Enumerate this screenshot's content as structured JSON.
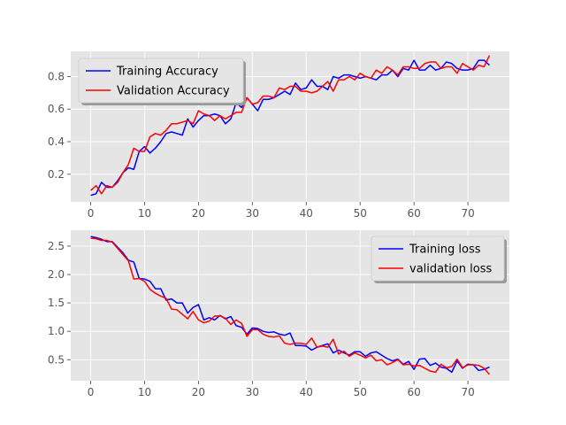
{
  "chart_data": [
    {
      "type": "line",
      "xlim": [
        -3.7,
        77.7
      ],
      "ylim": [
        0.03,
        0.955
      ],
      "xticks": [
        0,
        10,
        20,
        30,
        40,
        50,
        60,
        70
      ],
      "yticks": [
        0.2,
        0.4,
        0.6,
        0.8
      ],
      "ytick_labels": [
        "0.2",
        "0.4",
        "0.6",
        "0.8"
      ],
      "grid": true,
      "legend_position": "upper-left",
      "series": [
        {
          "name": "Training Accuracy",
          "color": "#0000ff",
          "values": [
            0.07,
            0.08,
            0.15,
            0.12,
            0.12,
            0.16,
            0.21,
            0.24,
            0.23,
            0.34,
            0.37,
            0.33,
            0.36,
            0.4,
            0.45,
            0.46,
            0.45,
            0.44,
            0.54,
            0.49,
            0.53,
            0.56,
            0.56,
            0.57,
            0.56,
            0.51,
            0.54,
            0.64,
            0.61,
            0.67,
            0.63,
            0.59,
            0.66,
            0.66,
            0.67,
            0.69,
            0.71,
            0.69,
            0.76,
            0.72,
            0.73,
            0.78,
            0.74,
            0.74,
            0.72,
            0.8,
            0.79,
            0.81,
            0.81,
            0.8,
            0.79,
            0.8,
            0.79,
            0.78,
            0.81,
            0.81,
            0.84,
            0.8,
            0.85,
            0.84,
            0.9,
            0.84,
            0.84,
            0.87,
            0.84,
            0.85,
            0.89,
            0.88,
            0.85,
            0.84,
            0.84,
            0.85,
            0.9,
            0.9,
            0.87
          ]
        },
        {
          "name": "Validation Accuracy",
          "color": "#ff0000",
          "values": [
            0.1,
            0.13,
            0.08,
            0.13,
            0.12,
            0.15,
            0.21,
            0.26,
            0.36,
            0.34,
            0.34,
            0.43,
            0.45,
            0.44,
            0.47,
            0.51,
            0.51,
            0.52,
            0.53,
            0.51,
            0.59,
            0.57,
            0.56,
            0.53,
            0.56,
            0.54,
            0.56,
            0.58,
            0.58,
            0.67,
            0.63,
            0.64,
            0.68,
            0.68,
            0.67,
            0.73,
            0.72,
            0.74,
            0.74,
            0.71,
            0.71,
            0.7,
            0.71,
            0.74,
            0.77,
            0.71,
            0.78,
            0.78,
            0.8,
            0.78,
            0.82,
            0.8,
            0.79,
            0.84,
            0.82,
            0.86,
            0.84,
            0.81,
            0.86,
            0.86,
            0.85,
            0.85,
            0.88,
            0.89,
            0.89,
            0.85,
            0.86,
            0.86,
            0.82,
            0.88,
            0.86,
            0.84,
            0.87,
            0.86,
            0.93
          ]
        }
      ]
    },
    {
      "type": "line",
      "xlim": [
        -3.7,
        77.7
      ],
      "ylim": [
        0.13,
        2.78
      ],
      "xticks": [
        0,
        10,
        20,
        30,
        40,
        50,
        60,
        70
      ],
      "yticks": [
        0.5,
        1.0,
        1.5,
        2.0,
        2.5
      ],
      "ytick_labels": [
        "0.5",
        "1.0",
        "1.5",
        "2.0",
        "2.5"
      ],
      "grid": true,
      "legend_position": "upper-right",
      "series": [
        {
          "name": "Training loss",
          "color": "#0000ff",
          "values": [
            2.67,
            2.65,
            2.62,
            2.58,
            2.58,
            2.48,
            2.38,
            2.25,
            2.22,
            1.93,
            1.92,
            1.88,
            1.75,
            1.75,
            1.55,
            1.57,
            1.5,
            1.5,
            1.32,
            1.42,
            1.47,
            1.2,
            1.24,
            1.2,
            1.28,
            1.22,
            1.26,
            1.1,
            1.07,
            0.95,
            1.06,
            1.05,
            1.0,
            0.98,
            0.99,
            0.95,
            0.93,
            0.97,
            0.75,
            0.75,
            0.74,
            0.67,
            0.72,
            0.75,
            0.78,
            0.62,
            0.67,
            0.62,
            0.58,
            0.64,
            0.64,
            0.56,
            0.62,
            0.64,
            0.58,
            0.52,
            0.48,
            0.51,
            0.42,
            0.47,
            0.33,
            0.51,
            0.52,
            0.4,
            0.44,
            0.37,
            0.35,
            0.28,
            0.48,
            0.35,
            0.42,
            0.41,
            0.31,
            0.33,
            0.37
          ]
        },
        {
          "name": "validation loss",
          "color": "#ff0000",
          "values": [
            2.64,
            2.63,
            2.6,
            2.6,
            2.57,
            2.46,
            2.35,
            2.24,
            1.92,
            1.93,
            1.88,
            1.74,
            1.67,
            1.62,
            1.58,
            1.39,
            1.38,
            1.3,
            1.22,
            1.35,
            1.2,
            1.15,
            1.18,
            1.27,
            1.27,
            1.23,
            1.12,
            1.2,
            1.14,
            0.91,
            1.03,
            1.03,
            0.95,
            0.91,
            0.9,
            0.92,
            0.79,
            0.77,
            0.79,
            0.79,
            0.77,
            0.88,
            0.72,
            0.74,
            0.72,
            0.86,
            0.6,
            0.65,
            0.56,
            0.62,
            0.58,
            0.53,
            0.58,
            0.48,
            0.5,
            0.41,
            0.45,
            0.5,
            0.41,
            0.42,
            0.39,
            0.4,
            0.35,
            0.3,
            0.28,
            0.42,
            0.36,
            0.38,
            0.51,
            0.36,
            0.41,
            0.41,
            0.4,
            0.35,
            0.24
          ]
        }
      ]
    }
  ]
}
